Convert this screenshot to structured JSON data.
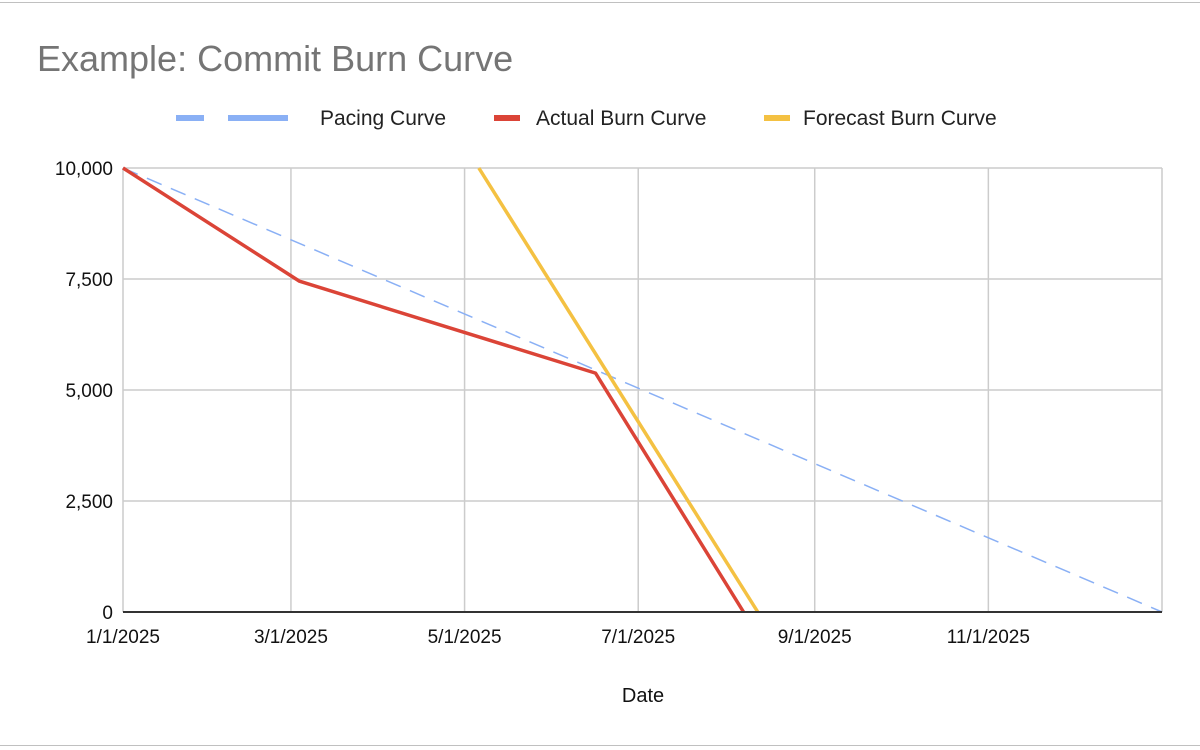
{
  "chart_data": {
    "type": "line",
    "title": "Example: Commit Burn Curve",
    "xlabel": "Date",
    "ylabel": "",
    "xlim": [
      "2025-01-01",
      "2026-01-01"
    ],
    "ylim": [
      0,
      10000
    ],
    "x_ticks": [
      "1/1/2025",
      "3/1/2025",
      "5/1/2025",
      "7/1/2025",
      "9/1/2025",
      "11/1/2025"
    ],
    "y_ticks": [
      "0",
      "2,500",
      "5,000",
      "7,500",
      "10,000"
    ],
    "grid": true,
    "legend_position": "top",
    "series": [
      {
        "name": "Pacing Curve",
        "color": "#8ab0f5",
        "dashed": true,
        "points": [
          [
            "2025-01-01",
            10000
          ],
          [
            "2026-01-01",
            0
          ]
        ]
      },
      {
        "name": "Actual Burn Curve",
        "color": "#db4437",
        "dashed": false,
        "points": [
          [
            "2025-01-01",
            10000
          ],
          [
            "2025-03-04",
            7450
          ],
          [
            "2025-06-16",
            5380
          ],
          [
            "2025-08-07",
            0
          ]
        ]
      },
      {
        "name": "Forecast Burn Curve",
        "color": "#f4c142",
        "dashed": false,
        "points": [
          [
            "2025-05-06",
            10000
          ],
          [
            "2025-08-12",
            0
          ]
        ]
      }
    ]
  }
}
